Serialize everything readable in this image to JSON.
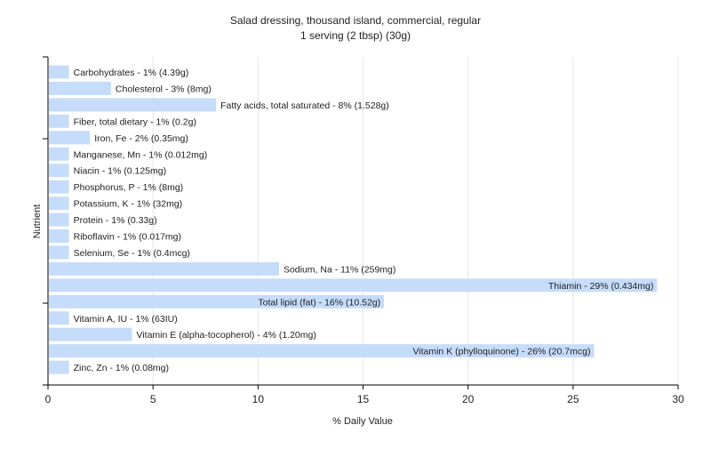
{
  "chart_data": {
    "type": "bar",
    "orientation": "horizontal",
    "title": "Salad dressing, thousand island, commercial, regular",
    "subtitle": "1 serving (2 tbsp) (30g)",
    "xlabel": "% Daily Value",
    "ylabel": "Nutrient",
    "xlim": [
      0,
      30
    ],
    "xticks": [
      "0",
      "5",
      "10",
      "15",
      "20",
      "25",
      "30"
    ],
    "grid": true,
    "bar_color": "#c6dcfb",
    "categories": [
      "Carbohydrates",
      "Cholesterol",
      "Fatty acids, total saturated",
      "Fiber, total dietary",
      "Iron, Fe",
      "Manganese, Mn",
      "Niacin",
      "Phosphorus, P",
      "Potassium, K",
      "Protein",
      "Riboflavin",
      "Selenium, Se",
      "Sodium, Na",
      "Thiamin",
      "Total lipid (fat)",
      "Vitamin A, IU",
      "Vitamin E (alpha-tocopherol)",
      "Vitamin K (phylloquinone)",
      "Zinc, Zn"
    ],
    "values": [
      1,
      3,
      8,
      1,
      2,
      1,
      1,
      1,
      1,
      1,
      1,
      1,
      11,
      29,
      16,
      1,
      4,
      26,
      1
    ],
    "labels": [
      "Carbohydrates - 1% (4.39g)",
      "Cholesterol - 3% (8mg)",
      "Fatty acids, total saturated - 8% (1.528g)",
      "Fiber, total dietary - 1% (0.2g)",
      "Iron, Fe - 2% (0.35mg)",
      "Manganese, Mn - 1% (0.012mg)",
      "Niacin - 1% (0.125mg)",
      "Phosphorus, P - 1% (8mg)",
      "Potassium, K - 1% (32mg)",
      "Protein - 1% (0.33g)",
      "Riboflavin - 1% (0.017mg)",
      "Selenium, Se - 1% (0.4mcg)",
      "Sodium, Na - 11% (259mg)",
      "Thiamin - 29% (0.434mg)",
      "Total lipid (fat) - 16% (10.52g)",
      "Vitamin A, IU - 1% (63IU)",
      "Vitamin E (alpha-tocopherol) - 4% (1.20mg)",
      "Vitamin K (phylloquinone) - 26% (20.7mcg)",
      "Zinc, Zn - 1% (0.08mg)"
    ]
  }
}
